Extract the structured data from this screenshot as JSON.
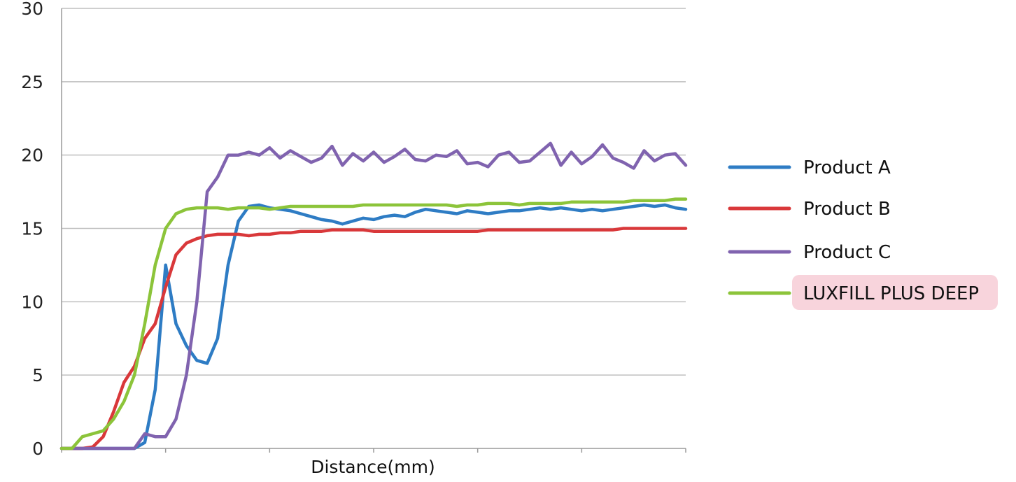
{
  "chart_data": {
    "type": "line",
    "title": "",
    "xlabel": "Distance(mm)",
    "ylabel": "",
    "ylim": [
      0,
      30
    ],
    "yticks": [
      "0",
      "5",
      "10",
      "15",
      "20",
      "25",
      "30"
    ],
    "x_tick_labels_shown": false,
    "grid": "horizontal",
    "legend_placement": "right",
    "x": [
      0,
      1,
      2,
      3,
      4,
      5,
      6,
      7,
      8,
      9,
      10,
      11,
      12,
      13,
      14,
      15,
      16,
      17,
      18,
      19,
      20,
      21,
      22,
      23,
      24,
      25,
      26,
      27,
      28,
      29,
      30,
      31,
      32,
      33,
      34,
      35,
      36,
      37,
      38,
      39,
      40,
      41,
      42,
      43,
      44,
      45,
      46,
      47,
      48,
      49,
      50,
      51,
      52,
      53,
      54,
      55,
      56,
      57,
      58,
      59,
      60
    ],
    "series": [
      {
        "name": "Product A",
        "color": "#2E7CC4",
        "values": [
          0,
          0,
          0,
          0,
          0,
          0,
          0,
          0,
          0.4,
          4,
          12.5,
          8.5,
          7,
          6,
          5.8,
          7.5,
          12.5,
          15.5,
          16.5,
          16.6,
          16.4,
          16.3,
          16.2,
          16,
          15.8,
          15.6,
          15.5,
          15.3,
          15.5,
          15.7,
          15.6,
          15.8,
          15.9,
          15.8,
          16.1,
          16.3,
          16.2,
          16.1,
          16,
          16.2,
          16.1,
          16,
          16.1,
          16.2,
          16.2,
          16.3,
          16.4,
          16.3,
          16.4,
          16.3,
          16.2,
          16.3,
          16.2,
          16.3,
          16.4,
          16.5,
          16.6,
          16.5,
          16.6,
          16.4,
          16.3
        ]
      },
      {
        "name": "Product B",
        "color": "#D9383A",
        "values": [
          0,
          0,
          0,
          0.1,
          0.8,
          2.5,
          4.5,
          5.6,
          7.5,
          8.5,
          11,
          13.2,
          14,
          14.3,
          14.5,
          14.6,
          14.6,
          14.6,
          14.5,
          14.6,
          14.6,
          14.7,
          14.7,
          14.8,
          14.8,
          14.8,
          14.9,
          14.9,
          14.9,
          14.9,
          14.8,
          14.8,
          14.8,
          14.8,
          14.8,
          14.8,
          14.8,
          14.8,
          14.8,
          14.8,
          14.8,
          14.9,
          14.9,
          14.9,
          14.9,
          14.9,
          14.9,
          14.9,
          14.9,
          14.9,
          14.9,
          14.9,
          14.9,
          14.9,
          15,
          15,
          15,
          15,
          15,
          15,
          15
        ]
      },
      {
        "name": "Product C",
        "color": "#8063AF",
        "values": [
          0,
          0,
          0,
          0,
          0,
          0,
          0,
          0,
          1,
          0.8,
          0.8,
          2,
          5,
          10,
          17.5,
          18.5,
          20,
          20,
          20.2,
          20,
          20.5,
          19.8,
          20.3,
          19.9,
          19.5,
          19.8,
          20.6,
          19.3,
          20.1,
          19.6,
          20.2,
          19.5,
          19.9,
          20.4,
          19.7,
          19.6,
          20,
          19.9,
          20.3,
          19.4,
          19.5,
          19.2,
          20,
          20.2,
          19.5,
          19.6,
          20.2,
          20.8,
          19.3,
          20.2,
          19.4,
          19.9,
          20.7,
          19.8,
          19.5,
          19.1,
          20.3,
          19.6,
          20,
          20.1,
          19.3
        ]
      },
      {
        "name": "LUXFILL PLUS DEEP",
        "color": "#8CC43A",
        "values": [
          0,
          0,
          0.8,
          1,
          1.2,
          2,
          3.2,
          5,
          8.5,
          12.5,
          15,
          16,
          16.3,
          16.4,
          16.4,
          16.4,
          16.3,
          16.4,
          16.4,
          16.4,
          16.3,
          16.4,
          16.5,
          16.5,
          16.5,
          16.5,
          16.5,
          16.5,
          16.5,
          16.6,
          16.6,
          16.6,
          16.6,
          16.6,
          16.6,
          16.6,
          16.6,
          16.6,
          16.5,
          16.6,
          16.6,
          16.7,
          16.7,
          16.7,
          16.6,
          16.7,
          16.7,
          16.7,
          16.7,
          16.8,
          16.8,
          16.8,
          16.8,
          16.8,
          16.8,
          16.9,
          16.9,
          16.9,
          16.9,
          17,
          17
        ]
      }
    ]
  }
}
